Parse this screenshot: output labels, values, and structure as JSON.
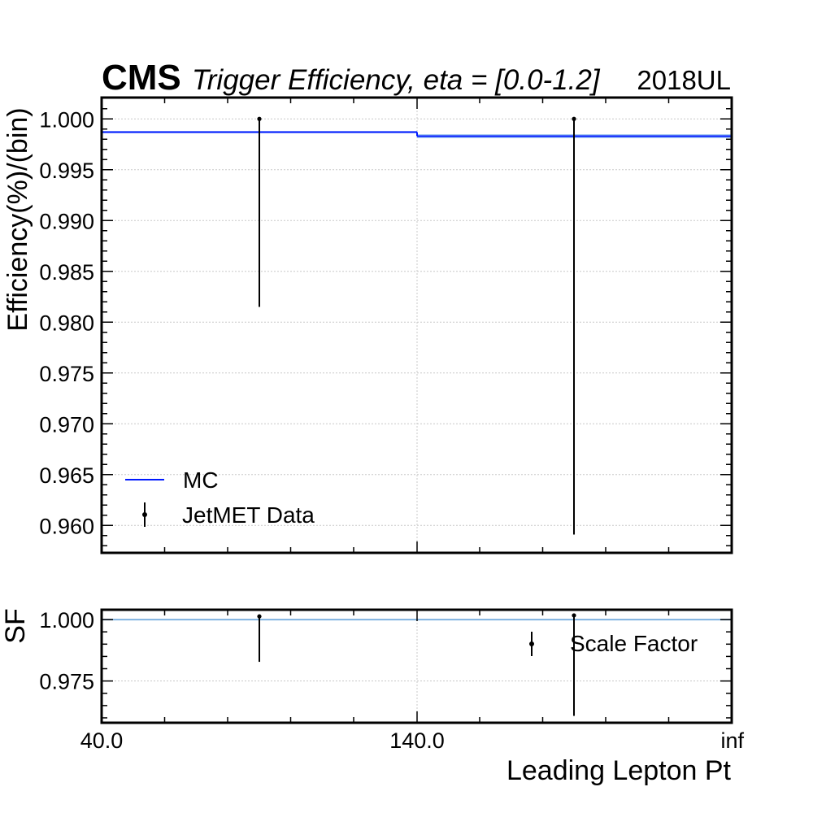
{
  "header": {
    "experiment": "CMS",
    "title": "Trigger Efficiency, eta = [0.0-1.2]",
    "era": "2018UL"
  },
  "colors": {
    "mc_line": "#0019ff",
    "mc_band": "#9fc5f0",
    "sf_line": "#7fb2e0",
    "data": "#000000"
  },
  "chart_data": [
    {
      "type": "line",
      "panel": "main",
      "ylabel": "Efficiency(%)/(bin)",
      "x_tick_labels": [
        "40.0",
        "140.0",
        "inf"
      ],
      "bin_edges_label": [
        "40.0",
        "140.0",
        "inf"
      ],
      "ylim": [
        0.9573,
        1.0021
      ],
      "yticks": [
        1.0,
        0.995,
        0.99,
        0.985,
        0.98,
        0.975,
        0.97,
        0.965,
        0.96
      ],
      "ytick_labels": [
        "1.000",
        "0.995",
        "0.990",
        "0.985",
        "0.980",
        "0.975",
        "0.970",
        "0.965",
        "0.960"
      ],
      "grid": true,
      "legend_position": "bottom-left",
      "series": [
        {
          "name": "MC",
          "kind": "step",
          "bins": [
            0,
            1
          ],
          "values": [
            0.9987,
            0.9983
          ],
          "band_low": [
            0.9986,
            0.9981
          ],
          "band_high": [
            0.9988,
            0.9985
          ]
        },
        {
          "name": "JetMET Data",
          "kind": "errorbar",
          "bins": [
            0,
            1
          ],
          "values": [
            1.0,
            1.0
          ],
          "err_low": [
            0.0185,
            0.0409
          ],
          "err_high": [
            0.0,
            0.0
          ]
        }
      ]
    },
    {
      "type": "line",
      "panel": "ratio",
      "ylabel": "SF",
      "xlabel": "Leading Lepton Pt",
      "x_tick_labels": [
        "40.0",
        "140.0",
        "inf"
      ],
      "ylim": [
        0.958,
        1.004
      ],
      "yticks": [
        1.0,
        0.975
      ],
      "ytick_labels": [
        "1.000",
        "0.975"
      ],
      "grid": true,
      "legend_position": "right",
      "series": [
        {
          "name": "Scale Factor",
          "kind": "errorbar",
          "bins": [
            0,
            1
          ],
          "values": [
            1.0013,
            1.0017
          ],
          "err_low": [
            0.0185,
            0.0409
          ],
          "err_high": [
            0.0,
            0.0
          ]
        }
      ],
      "reference_line": 1.0
    }
  ]
}
